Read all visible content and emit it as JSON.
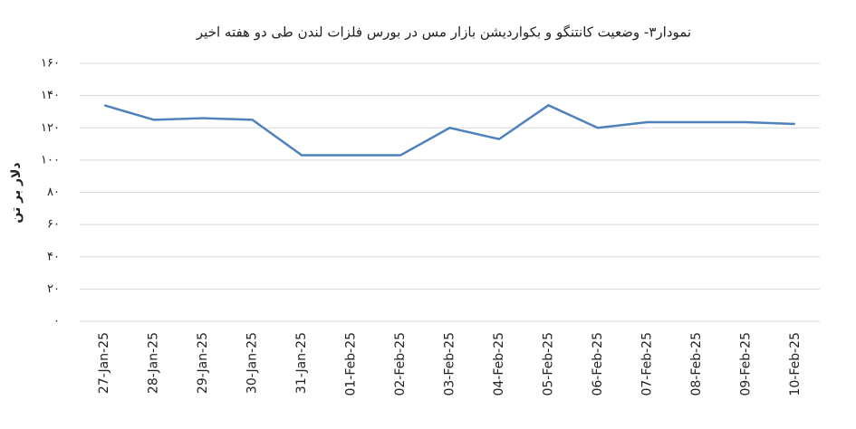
{
  "chart_data": {
    "type": "line",
    "title": "نمودار۳- وضعیت کانتنگو و بکواردیشن بازار مس در بورس فلزات لندن طی دو هفته اخیر",
    "y_label": "دلار بر تن",
    "categories": [
      "27-Jan-25",
      "28-Jan-25",
      "29-Jan-25",
      "30-Jan-25",
      "31-Jan-25",
      "01-Feb-25",
      "02-Feb-25",
      "03-Feb-25",
      "04-Feb-25",
      "05-Feb-25",
      "06-Feb-25",
      "07-Feb-25",
      "08-Feb-25",
      "09-Feb-25",
      "10-Feb-25"
    ],
    "values": [
      134,
      125,
      126,
      125,
      103,
      103,
      103,
      120,
      113,
      134,
      120,
      123.5,
      123.5,
      123.5,
      122.4
    ],
    "color": "#4f81bd",
    "ylim": [
      0,
      160
    ],
    "yticks": [
      {
        "value": 0,
        "label": "۰"
      },
      {
        "value": 20,
        "label": "۲۰"
      },
      {
        "value": 40,
        "label": "۴۰"
      },
      {
        "value": 60,
        "label": "۶۰"
      },
      {
        "value": 80,
        "label": "۸۰"
      },
      {
        "value": 100,
        "label": "۱۰۰"
      },
      {
        "value": 120,
        "label": "۱۲۰"
      },
      {
        "value": 140,
        "label": "۱۴۰"
      },
      {
        "value": 160,
        "label": "۱۶۰"
      }
    ],
    "grid": true
  }
}
